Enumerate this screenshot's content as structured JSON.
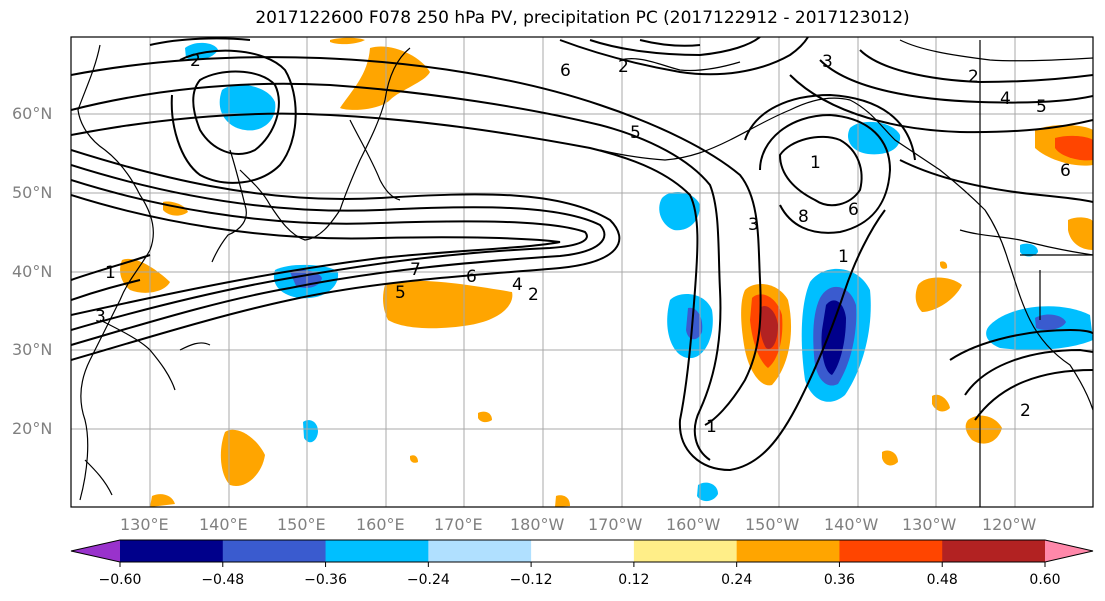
{
  "title": "2017122600 F078 250 hPa PV, precipitation PC (2017122912 - 2017123012)",
  "lat_labels": [
    "60°N",
    "50°N",
    "40°N",
    "30°N",
    "20°N"
  ],
  "lon_labels": [
    "130°E",
    "140°E",
    "150°E",
    "160°E",
    "170°E",
    "180°W",
    "170°W",
    "160°W",
    "150°W",
    "140°W",
    "130°W",
    "120°W"
  ],
  "contour_labels": [
    "2",
    "3",
    "1",
    "2",
    "5",
    "6",
    "7",
    "6",
    "4",
    "5",
    "2",
    "3",
    "1",
    "8",
    "6",
    "1",
    "3",
    "2",
    "4",
    "5",
    "6",
    "1",
    "2"
  ],
  "colorbar": {
    "ticks": [
      "−0.60",
      "−0.48",
      "−0.36",
      "−0.24",
      "−0.12",
      "0.12",
      "0.24",
      "0.36",
      "0.48",
      "0.60"
    ],
    "colors": [
      "#9932cc",
      "#00008b",
      "#3a5bcf",
      "#00bfff",
      "#b0e0ff",
      "#ffffff",
      "#ffee88",
      "#ffa500",
      "#ff4500",
      "#b22222",
      "#ff88aa"
    ]
  }
}
